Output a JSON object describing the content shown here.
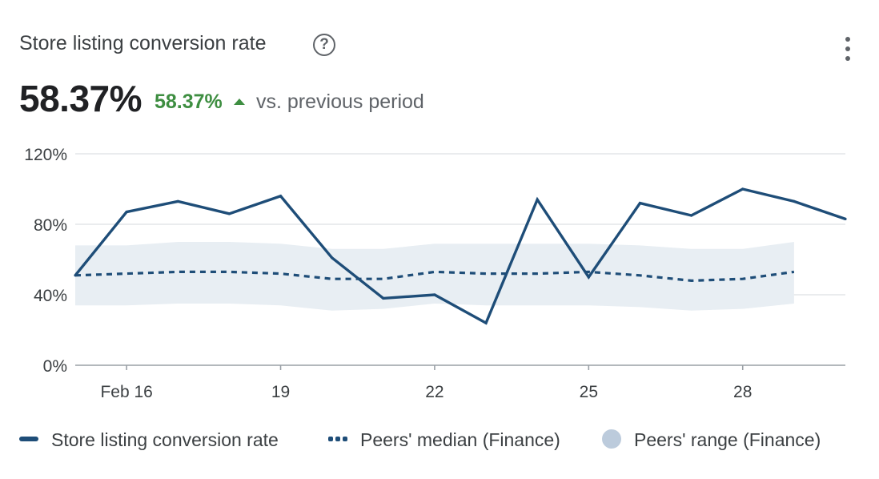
{
  "header": {
    "title": "Store listing conversion rate",
    "help_icon": "help-circle-icon",
    "help_glyph": "?",
    "more_icon": "more-vert-icon"
  },
  "metric": {
    "value": "58.37%",
    "change": "58.37%",
    "compare_text": "vs. previous period",
    "change_color": "#3e8e41",
    "change_direction": "up"
  },
  "chart_data": {
    "type": "line",
    "title": "",
    "xlabel": "",
    "ylabel": "",
    "x": [
      "Feb 15",
      "Feb 16",
      "Feb 17",
      "Feb 18",
      "Feb 19",
      "Feb 20",
      "Feb 21",
      "Feb 22",
      "Feb 23",
      "Feb 24",
      "Feb 25",
      "Feb 26",
      "Feb 27",
      "Feb 28",
      "Feb 29",
      "Mar 1"
    ],
    "x_ticks": [
      "Feb 16",
      "19",
      "22",
      "25",
      "28"
    ],
    "y_ticks": [
      "120%",
      "80%",
      "40%",
      "0%"
    ],
    "ylim": [
      0,
      120
    ],
    "grid": true,
    "legend_position": "bottom",
    "series": [
      {
        "name": "Store listing conversion rate",
        "style": "solid",
        "color": "#1e4d78",
        "values": [
          51,
          87,
          93,
          86,
          96,
          61,
          38,
          40,
          24,
          94,
          50,
          92,
          85,
          100,
          93,
          83
        ]
      },
      {
        "name": "Peers' median (Finance)",
        "style": "dashed",
        "color": "#1e4d78",
        "values": [
          51,
          52,
          53,
          53,
          52,
          49,
          49,
          53,
          52,
          52,
          53,
          51,
          48,
          49,
          53,
          null
        ]
      },
      {
        "name": "Peers' range (Finance)",
        "style": "band",
        "color": "#e8eef3",
        "lower": [
          34,
          34,
          35,
          35,
          34,
          31,
          32,
          35,
          34,
          34,
          34,
          33,
          31,
          32,
          35,
          null
        ],
        "upper": [
          68,
          68,
          70,
          70,
          69,
          66,
          66,
          69,
          69,
          69,
          69,
          68,
          66,
          66,
          70,
          null
        ]
      }
    ]
  },
  "legend": {
    "items": [
      {
        "label": "Store listing conversion rate"
      },
      {
        "label": "Peers' median (Finance)"
      },
      {
        "label": "Peers' range (Finance)"
      }
    ]
  }
}
